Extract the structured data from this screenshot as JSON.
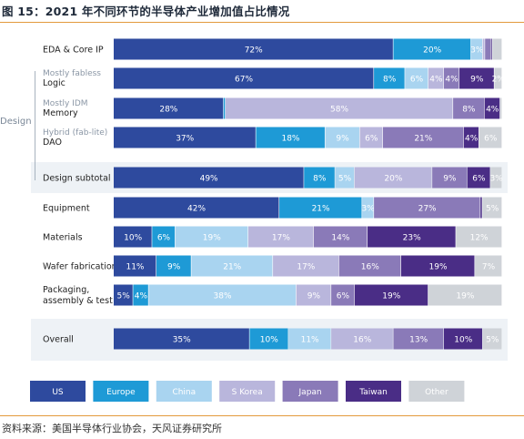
{
  "figure": {
    "title": "图 15：2021 年不同环节的半导体产业增加值占比情况",
    "source": "资料来源：美国半导体行业协会，天风证券研究所",
    "side_label": "Design"
  },
  "chart_data": {
    "type": "bar",
    "orientation": "horizontal",
    "stacked": true,
    "unit": "%",
    "xlim": [
      0,
      100
    ],
    "legend_position": "bottom",
    "legend": [
      "US",
      "Europe",
      "China",
      "S Korea",
      "Japan",
      "Taiwan",
      "Other"
    ],
    "colors": {
      "US": "#2e4a9e",
      "Europe": "#1e9ad6",
      "China": "#a9d4f0",
      "S Korea": "#b9b6dc",
      "Japan": "#8a7ab8",
      "Taiwan": "#4a2d86",
      "Other": "#cfd3d8"
    },
    "rows": [
      {
        "name": "EDA & Core IP",
        "sublabel": "",
        "values": [
          72,
          20,
          3,
          0.6,
          1.5,
          0.4,
          2.5
        ],
        "labels": [
          "72%",
          "20%",
          "3%",
          "",
          "",
          "",
          ""
        ]
      },
      {
        "name": "Logic",
        "sublabel": "Mostly fabless",
        "values": [
          67,
          8,
          6,
          4,
          4,
          9,
          2
        ],
        "labels": [
          "67%",
          "8%",
          "6%",
          "4%",
          "4%",
          "9%",
          "2%"
        ]
      },
      {
        "name": "Memory",
        "sublabel": "Mostly IDM",
        "values": [
          28,
          0.5,
          0,
          58,
          8,
          4,
          0.5
        ],
        "labels": [
          "28%",
          "",
          "",
          "58%",
          "8%",
          "4%",
          ""
        ]
      },
      {
        "name": "DAO",
        "sublabel": "Hybrid (fab-lite)",
        "values": [
          37,
          18,
          9,
          6,
          21,
          4,
          6
        ],
        "labels": [
          "37%",
          "18%",
          "9%",
          "6%",
          "21%",
          "4%",
          "6%"
        ]
      },
      {
        "name": "Design subtotal",
        "sublabel": "",
        "values": [
          49,
          8,
          5,
          20,
          9,
          6,
          3
        ],
        "labels": [
          "49%",
          "8%",
          "5%",
          "20%",
          "9%",
          "6%",
          "3%"
        ]
      },
      {
        "name": "Equipment",
        "sublabel": "",
        "values": [
          42,
          21,
          3,
          0,
          27,
          0.5,
          5
        ],
        "labels": [
          "42%",
          "21%",
          "3%",
          "",
          "27%",
          "",
          "5%"
        ]
      },
      {
        "name": "Materials",
        "sublabel": "",
        "values": [
          10,
          6,
          19,
          17,
          14,
          23,
          12
        ],
        "labels": [
          "10%",
          "6%",
          "19%",
          "17%",
          "14%",
          "23%",
          "12%"
        ]
      },
      {
        "name": "Wafer fabrication",
        "sublabel": "",
        "values": [
          11,
          9,
          21,
          17,
          16,
          19,
          7
        ],
        "labels": [
          "11%",
          "9%",
          "21%",
          "17%",
          "16%",
          "19%",
          "7%"
        ]
      },
      {
        "name": "Packaging, assembly & test",
        "sublabel": "",
        "values": [
          5,
          4,
          38,
          9,
          6,
          19,
          19
        ],
        "labels": [
          "5%",
          "4%",
          "38%",
          "9%",
          "6%",
          "19%",
          "19%"
        ]
      },
      {
        "name": "Overall",
        "sublabel": "",
        "values": [
          35,
          10,
          11,
          16,
          13,
          10,
          5
        ],
        "labels": [
          "35%",
          "10%",
          "11%",
          "16%",
          "13%",
          "10%",
          "5%"
        ]
      }
    ]
  }
}
